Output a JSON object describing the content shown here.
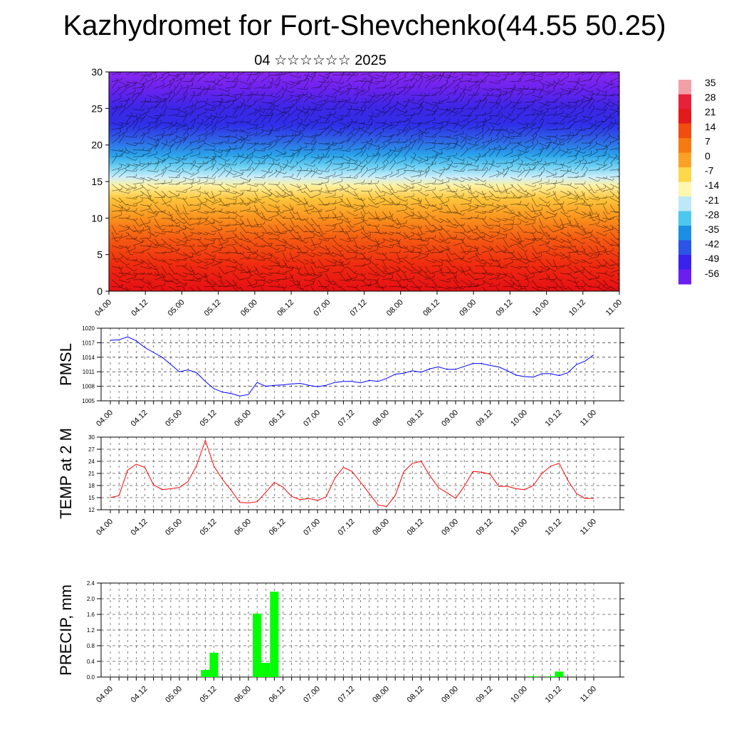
{
  "title": "Kazhydromet for Fort-Shevchenko(44.55 50.25)",
  "subtitle": "04 ☆☆☆☆☆☆ 2025",
  "colors": {
    "pmsl_line": "#0000ff",
    "temp_line": "#ff0000",
    "precip_bar": "#00ff00",
    "grid": "#000000"
  },
  "chart_data": [
    {
      "type": "heatmap",
      "description": "Vertical cross-section temperature with wind barbs",
      "xlabel": "",
      "ylabel": "",
      "ylim": [
        0,
        30
      ],
      "yticks": [
        "0",
        "5",
        "10",
        "15",
        "20",
        "25",
        "30"
      ],
      "x_tick_labels": [
        "04.00",
        "04.12",
        "05.00",
        "05.12",
        "06.00",
        "06.12",
        "07.00",
        "07.12",
        "08.00",
        "08.12",
        "09.00",
        "09.12",
        "10.00",
        "10.12",
        "11.00"
      ],
      "colorbar_labels": [
        "35",
        "28",
        "21",
        "14",
        "7",
        "0",
        "-7",
        "-14",
        "-21",
        "-28",
        "-35",
        "-42",
        "-49",
        "-56"
      ],
      "colorbar_colors": [
        "#f2a0a8",
        "#e8203a",
        "#e41a1a",
        "#f24d0e",
        "#f77a10",
        "#fba225",
        "#fdd84a",
        "#fff6b0",
        "#bde9f7",
        "#4cc8ee",
        "#1a8fe3",
        "#2a55e8",
        "#3a22ee",
        "#6a1ef0"
      ],
      "approx_temperature_by_level": [
        {
          "level": 0,
          "value": 20
        },
        {
          "level": 5,
          "value": 12
        },
        {
          "level": 10,
          "value": 3
        },
        {
          "level": 15,
          "value": -10
        },
        {
          "level": 20,
          "value": -35
        },
        {
          "level": 25,
          "value": -56
        },
        {
          "level": 30,
          "value": -58
        }
      ]
    },
    {
      "type": "line",
      "ylabel": "PMSL",
      "ylim": [
        1005,
        1020
      ],
      "yticks": [
        "1005",
        "1008",
        "1011",
        "1014",
        "1017",
        "1020"
      ],
      "x_tick_labels": [
        "04.00",
        "04.12",
        "05.00",
        "05.12",
        "06.00",
        "06.12",
        "07.00",
        "07.12",
        "08.00",
        "08.12",
        "09.00",
        "09.12",
        "10.00",
        "10.12",
        "11.00"
      ],
      "series": [
        {
          "values": [
            1017.5,
            1017.6,
            1018.2,
            1017.4,
            1016.0,
            1015.0,
            1014.0,
            1012.5,
            1011.0,
            1011.4,
            1010.8,
            1009.0,
            1007.5,
            1006.8,
            1006.5,
            1006.0,
            1006.3,
            1008.8,
            1008.0,
            1008.2,
            1008.3,
            1008.5,
            1008.6,
            1008.2,
            1007.9,
            1008.2,
            1008.8,
            1009.0,
            1009.0,
            1008.7,
            1009.2,
            1009.0,
            1009.6,
            1010.5,
            1010.7,
            1011.2,
            1010.9,
            1011.6,
            1012.0,
            1011.5,
            1011.5,
            1012.1,
            1012.7,
            1012.7,
            1012.3,
            1012.0,
            1011.2,
            1010.3,
            1010.0,
            1009.9,
            1010.6,
            1010.6,
            1010.2,
            1010.8,
            1012.5,
            1013.2,
            1014.5
          ]
        }
      ]
    },
    {
      "type": "line",
      "ylabel": "TEMP at 2 M",
      "ylim": [
        12,
        30
      ],
      "yticks": [
        "12",
        "15",
        "18",
        "21",
        "24",
        "27",
        "30"
      ],
      "x_tick_labels": [
        "04.00",
        "04.12",
        "05.00",
        "05.12",
        "06.00",
        "06.12",
        "07.00",
        "07.12",
        "08.00",
        "08.12",
        "09.00",
        "09.12",
        "10.00",
        "10.12",
        "11.00"
      ],
      "series": [
        {
          "values": [
            15.0,
            15.5,
            21.8,
            23.3,
            22.5,
            18.2,
            17.0,
            17.2,
            17.5,
            19.0,
            23.0,
            29.2,
            22.8,
            19.5,
            16.8,
            13.8,
            13.7,
            14.0,
            16.3,
            18.8,
            17.6,
            15.3,
            14.5,
            14.8,
            14.3,
            15.2,
            19.8,
            22.5,
            21.5,
            18.8,
            16.0,
            13.2,
            12.8,
            15.5,
            21.5,
            23.5,
            24.0,
            20.5,
            17.5,
            16.2,
            14.8,
            17.8,
            21.5,
            21.3,
            20.8,
            17.8,
            17.8,
            17.2,
            17.0,
            18.0,
            21.0,
            22.8,
            23.5,
            19.3,
            16.0,
            14.8,
            14.8
          ]
        }
      ]
    },
    {
      "type": "bar",
      "ylabel": "PRECIP, mm",
      "ylim": [
        0,
        2.4
      ],
      "yticks": [
        "0.0",
        "0.4",
        "0.8",
        "1.2",
        "1.6",
        "2.0",
        "2.4"
      ],
      "x_tick_labels": [
        "04.00",
        "04.12",
        "05.00",
        "05.12",
        "06.00",
        "06.12",
        "07.00",
        "07.12",
        "08.00",
        "08.12",
        "09.00",
        "09.12",
        "10.00",
        "10.12",
        "11.00"
      ],
      "values": [
        0,
        0,
        0,
        0,
        0,
        0,
        0,
        0,
        0,
        0,
        0,
        0.18,
        0.62,
        0,
        0,
        0,
        0,
        1.62,
        0.36,
        2.18,
        0,
        0,
        0,
        0,
        0,
        0,
        0,
        0,
        0,
        0,
        0,
        0,
        0,
        0,
        0,
        0,
        0,
        0,
        0,
        0,
        0,
        0,
        0,
        0,
        0,
        0,
        0,
        0,
        0,
        0.02,
        0,
        0.02,
        0.14,
        0,
        0,
        0,
        0
      ]
    }
  ]
}
